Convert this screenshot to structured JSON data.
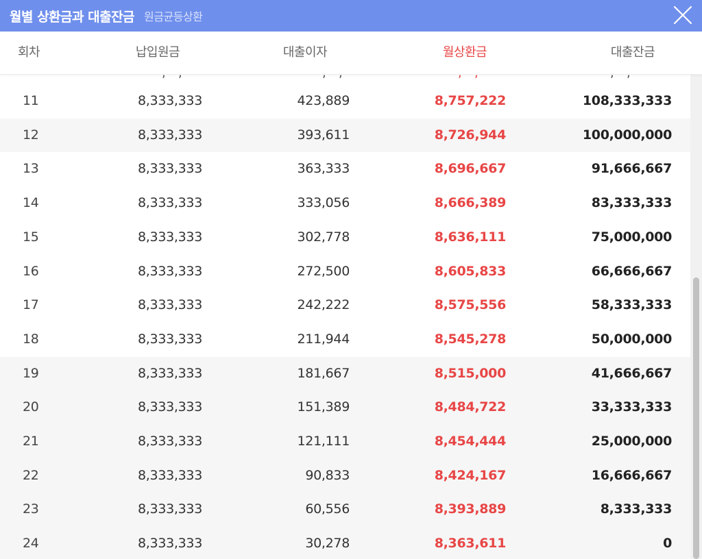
{
  "modal": {
    "title": "월별 상환금과 대출잔금",
    "subtitle": "원금균등상환",
    "close_icon": "close-icon"
  },
  "colors": {
    "titlebar": "#6f8fec",
    "accent_red": "#e84646",
    "shaded_row": "#f6f6f6"
  },
  "table": {
    "headers": [
      "회차",
      "납입원금",
      "대출이자",
      "월상환금",
      "대출잔금"
    ],
    "rows": [
      {
        "no": "11",
        "principal": "8,333,333",
        "interest": "423,889",
        "payment": "8,757,222",
        "balance": "108,333,333",
        "shaded": false
      },
      {
        "no": "12",
        "principal": "8,333,333",
        "interest": "393,611",
        "payment": "8,726,944",
        "balance": "100,000,000",
        "shaded": true
      },
      {
        "no": "13",
        "principal": "8,333,333",
        "interest": "363,333",
        "payment": "8,696,667",
        "balance": "91,666,667",
        "shaded": false
      },
      {
        "no": "14",
        "principal": "8,333,333",
        "interest": "333,056",
        "payment": "8,666,389",
        "balance": "83,333,333",
        "shaded": false
      },
      {
        "no": "15",
        "principal": "8,333,333",
        "interest": "302,778",
        "payment": "8,636,111",
        "balance": "75,000,000",
        "shaded": false
      },
      {
        "no": "16",
        "principal": "8,333,333",
        "interest": "272,500",
        "payment": "8,605,833",
        "balance": "66,666,667",
        "shaded": false
      },
      {
        "no": "17",
        "principal": "8,333,333",
        "interest": "242,222",
        "payment": "8,575,556",
        "balance": "58,333,333",
        "shaded": false
      },
      {
        "no": "18",
        "principal": "8,333,333",
        "interest": "211,944",
        "payment": "8,545,278",
        "balance": "50,000,000",
        "shaded": false
      },
      {
        "no": "19",
        "principal": "8,333,333",
        "interest": "181,667",
        "payment": "8,515,000",
        "balance": "41,666,667",
        "shaded": true
      },
      {
        "no": "20",
        "principal": "8,333,333",
        "interest": "151,389",
        "payment": "8,484,722",
        "balance": "33,333,333",
        "shaded": true
      },
      {
        "no": "21",
        "principal": "8,333,333",
        "interest": "121,111",
        "payment": "8,454,444",
        "balance": "25,000,000",
        "shaded": true
      },
      {
        "no": "22",
        "principal": "8,333,333",
        "interest": "90,833",
        "payment": "8,424,167",
        "balance": "16,666,667",
        "shaded": true
      },
      {
        "no": "23",
        "principal": "8,333,333",
        "interest": "60,556",
        "payment": "8,393,889",
        "balance": "8,333,333",
        "shaded": true
      },
      {
        "no": "24",
        "principal": "8,333,333",
        "interest": "30,278",
        "payment": "8,363,611",
        "balance": "0",
        "shaded": true
      }
    ]
  }
}
